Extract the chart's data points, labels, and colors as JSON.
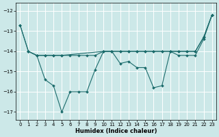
{
  "xlabel": "Humidex (Indice chaleur)",
  "background_color": "#cce8e8",
  "grid_color": "#ffffff",
  "line_color": "#1b6b6b",
  "xlim": [
    -0.5,
    23.5
  ],
  "ylim": [
    -17.4,
    -11.6
  ],
  "yticks": [
    -17,
    -16,
    -15,
    -14,
    -13,
    -12
  ],
  "xticks": [
    0,
    1,
    2,
    3,
    4,
    5,
    6,
    7,
    8,
    9,
    10,
    11,
    12,
    13,
    14,
    15,
    16,
    17,
    18,
    19,
    20,
    21,
    22,
    23
  ],
  "line1_x": [
    0,
    1,
    2,
    3,
    4,
    5,
    6,
    7,
    8,
    9,
    10,
    11,
    12,
    13,
    14,
    15,
    16,
    17,
    18,
    19,
    20,
    21,
    22,
    23
  ],
  "line1_y": [
    -12.7,
    -14.0,
    -14.2,
    -14.2,
    -14.2,
    -14.2,
    -14.2,
    -14.2,
    -14.2,
    -14.2,
    -14.0,
    -14.0,
    -14.0,
    -14.0,
    -14.0,
    -14.0,
    -14.0,
    -14.0,
    -14.0,
    -14.0,
    -14.0,
    -14.0,
    -13.3,
    -12.2
  ],
  "line2_x": [
    0,
    1,
    2,
    3,
    4,
    5,
    10,
    11,
    12,
    13,
    14,
    15,
    16,
    17,
    18,
    19,
    20,
    21,
    22,
    23
  ],
  "line2_y": [
    -12.7,
    -14.0,
    -14.2,
    -14.2,
    -14.2,
    -14.2,
    -14.0,
    -14.0,
    -14.0,
    -14.0,
    -14.0,
    -14.0,
    -14.0,
    -14.0,
    -14.0,
    -14.0,
    -14.0,
    -14.0,
    -13.3,
    -12.2
  ],
  "line3_x": [
    1,
    2,
    3,
    4,
    5,
    6,
    7,
    8,
    9,
    10,
    11,
    12,
    13,
    14,
    15,
    16,
    17,
    18,
    19,
    20,
    21,
    22,
    23
  ],
  "line3_y": [
    -14.0,
    -14.2,
    -15.4,
    -15.7,
    -17.0,
    -16.0,
    -16.0,
    -16.0,
    -14.9,
    -14.0,
    -14.0,
    -14.6,
    -14.5,
    -14.8,
    -14.8,
    -15.8,
    -15.7,
    -14.0,
    -14.2,
    -14.2,
    -14.2,
    -13.4,
    -12.2
  ]
}
